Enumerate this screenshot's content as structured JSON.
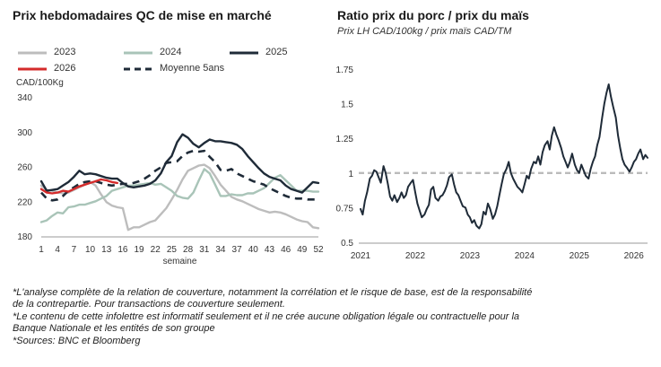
{
  "left": {
    "title": "Prix hebdomadaires QC de mise en marché"
  },
  "right": {
    "title": "Ratio prix du porc / prix du maïs",
    "subtitle": "Prix LH CAD/100kg / prix maïs CAD/TM"
  },
  "footnotes": [
    "*L'analyse complète de la relation de couverture, notamment la corrélation et le risque de base, est de la responsabilité",
    "de la contrepartie. Pour transactions de couverture seulement.",
    "*Le contenu de cette infolettre est informatif seulement et il ne crée aucune obligation légale ou contractuelle pour la",
    "Banque Nationale et les entités de son groupe",
    "*Sources: BNC et Bloomberg"
  ],
  "chart_data": [
    {
      "type": "line",
      "title": "Prix hebdomadaires QC de mise en marché",
      "ylabel": "CAD/100Kg",
      "xlabel": "semaine",
      "ylim": [
        180,
        340
      ],
      "yticks": [
        180,
        220,
        260,
        300,
        340
      ],
      "xlim": [
        1,
        52
      ],
      "xticks": [
        1,
        4,
        7,
        10,
        13,
        16,
        19,
        22,
        25,
        28,
        31,
        34,
        37,
        40,
        43,
        46,
        49,
        52
      ],
      "legend_position": "top",
      "series": [
        {
          "name": "2023",
          "color": "#bdbdbd",
          "dash": false,
          "x": [
            1,
            2,
            3,
            4,
            5,
            6,
            7,
            8,
            9,
            10,
            11,
            12,
            13,
            14,
            15,
            16,
            17,
            18,
            19,
            20,
            21,
            22,
            23,
            24,
            25,
            26,
            27,
            28,
            29,
            30,
            31,
            32,
            33,
            34,
            35,
            36,
            37,
            38,
            39,
            40,
            41,
            42,
            43,
            44,
            45,
            46,
            47,
            48,
            49,
            50,
            51,
            52
          ],
          "values": [
            238,
            233,
            232,
            230,
            229,
            230,
            233,
            236,
            239,
            242,
            238,
            228,
            219,
            215,
            213,
            212,
            187,
            190,
            190,
            193,
            196,
            198,
            205,
            212,
            222,
            233,
            245,
            255,
            258,
            261,
            262,
            258,
            249,
            239,
            232,
            225,
            222,
            220,
            217,
            214,
            211,
            209,
            207,
            208,
            207,
            205,
            202,
            199,
            197,
            196,
            190,
            189
          ]
        },
        {
          "name": "2024",
          "color": "#a9c4b8",
          "dash": false,
          "x": [
            1,
            2,
            3,
            4,
            5,
            6,
            7,
            8,
            9,
            10,
            11,
            12,
            13,
            14,
            15,
            16,
            17,
            18,
            19,
            20,
            21,
            22,
            23,
            24,
            25,
            26,
            27,
            28,
            29,
            30,
            31,
            32,
            33,
            34,
            35,
            36,
            37,
            38,
            39,
            40,
            41,
            42,
            43,
            44,
            45,
            46,
            47,
            48,
            49,
            50,
            51,
            52
          ],
          "values": [
            196,
            198,
            203,
            207,
            206,
            213,
            214,
            216,
            216,
            218,
            220,
            223,
            226,
            232,
            234,
            236,
            238,
            238,
            239,
            240,
            241,
            239,
            240,
            236,
            232,
            226,
            224,
            223,
            230,
            244,
            257,
            252,
            239,
            226,
            226,
            228,
            227,
            227,
            229,
            229,
            232,
            235,
            241,
            247,
            250,
            244,
            238,
            232,
            232,
            232,
            231,
            231
          ]
        },
        {
          "name": "2025",
          "color": "#1f2b38",
          "dash": false,
          "x": [
            1,
            2,
            3,
            4,
            5,
            6,
            7,
            8,
            9,
            10,
            11,
            12,
            13,
            14,
            15,
            16,
            17,
            18,
            19,
            20,
            21,
            22,
            23,
            24,
            25,
            26,
            27,
            28,
            29,
            30,
            31,
            32,
            33,
            34,
            35,
            36,
            37,
            38,
            39,
            40,
            41,
            42,
            43,
            44,
            45,
            46,
            47,
            48,
            49,
            50,
            51,
            52
          ],
          "values": [
            243,
            232,
            233,
            234,
            238,
            242,
            248,
            255,
            251,
            252,
            251,
            249,
            247,
            246,
            246,
            241,
            237,
            236,
            237,
            238,
            240,
            244,
            252,
            265,
            272,
            288,
            297,
            293,
            286,
            282,
            287,
            291,
            289,
            289,
            288,
            287,
            285,
            280,
            272,
            265,
            258,
            252,
            248,
            246,
            244,
            238,
            234,
            232,
            230,
            236,
            242,
            241
          ]
        },
        {
          "name": "2026",
          "color": "#d42b2b",
          "dash": false,
          "x": [
            1,
            2,
            3,
            4,
            5,
            6,
            7,
            8,
            9,
            10,
            11,
            12,
            13,
            14,
            15
          ],
          "values": [
            234,
            230,
            229,
            230,
            232,
            231,
            234,
            237,
            239,
            241,
            243,
            245,
            244,
            242,
            241
          ]
        },
        {
          "name": "Moyenne 5ans",
          "color": "#1f2b38",
          "dash": true,
          "x": [
            1,
            2,
            3,
            4,
            5,
            6,
            7,
            8,
            9,
            10,
            11,
            12,
            13,
            14,
            15,
            16,
            17,
            18,
            19,
            20,
            21,
            22,
            23,
            24,
            25,
            26,
            27,
            28,
            29,
            30,
            31,
            32,
            33,
            34,
            35,
            36,
            37,
            38,
            39,
            40,
            41,
            42,
            43,
            44,
            45,
            46,
            47,
            48,
            49,
            50,
            51,
            52
          ],
          "values": [
            230,
            223,
            221,
            222,
            226,
            232,
            236,
            240,
            242,
            243,
            243,
            241,
            239,
            238,
            239,
            240,
            240,
            241,
            243,
            246,
            250,
            255,
            259,
            264,
            265,
            266,
            272,
            276,
            278,
            277,
            278,
            271,
            265,
            256,
            255,
            257,
            252,
            249,
            246,
            243,
            241,
            239,
            235,
            232,
            229,
            226,
            224,
            223,
            223,
            222,
            222,
            222
          ]
        }
      ]
    },
    {
      "type": "line",
      "title": "Ratio prix du porc / prix du maïs",
      "subtitle": "Prix LH CAD/100kg / prix maïs CAD/TM",
      "ylim": [
        0.5,
        1.75
      ],
      "yticks": [
        0.5,
        0.75,
        1,
        1.25,
        1.5,
        1.75
      ],
      "ytick_labels": [
        "0.5",
        "0.75",
        "1",
        "1.25",
        "1.5",
        "1.75"
      ],
      "xlim": [
        2021.0,
        2026.25
      ],
      "xticks": [
        2021,
        2022,
        2023,
        2024,
        2025,
        2026
      ],
      "xtick_labels": [
        "2021",
        "2022",
        "2023",
        "2024",
        "2025",
        "2026"
      ],
      "reference_line": {
        "y": 1,
        "color": "#bbbbbb",
        "dash": true
      },
      "series": [
        {
          "color": "#1f2b38",
          "x": [
            2021.0,
            2021.04,
            2021.08,
            2021.12,
            2021.17,
            2021.21,
            2021.25,
            2021.29,
            2021.33,
            2021.37,
            2021.42,
            2021.46,
            2021.5,
            2021.54,
            2021.58,
            2021.62,
            2021.67,
            2021.71,
            2021.75,
            2021.79,
            2021.83,
            2021.87,
            2021.92,
            2021.96,
            2022.0,
            2022.04,
            2022.08,
            2022.12,
            2022.17,
            2022.21,
            2022.25,
            2022.29,
            2022.33,
            2022.37,
            2022.42,
            2022.46,
            2022.5,
            2022.54,
            2022.58,
            2022.62,
            2022.67,
            2022.71,
            2022.75,
            2022.79,
            2022.83,
            2022.87,
            2022.92,
            2022.96,
            2023.0,
            2023.04,
            2023.08,
            2023.12,
            2023.17,
            2023.21,
            2023.25,
            2023.29,
            2023.33,
            2023.37,
            2023.42,
            2023.46,
            2023.5,
            2023.54,
            2023.58,
            2023.62,
            2023.67,
            2023.71,
            2023.75,
            2023.79,
            2023.83,
            2023.87,
            2023.92,
            2023.96,
            2024.0,
            2024.04,
            2024.08,
            2024.12,
            2024.17,
            2024.21,
            2024.25,
            2024.29,
            2024.33,
            2024.37,
            2024.42,
            2024.46,
            2024.5,
            2024.54,
            2024.58,
            2024.62,
            2024.67,
            2024.71,
            2024.75,
            2024.79,
            2024.83,
            2024.87,
            2024.92,
            2024.96,
            2025.0,
            2025.04,
            2025.08,
            2025.12,
            2025.17,
            2025.21,
            2025.25,
            2025.29,
            2025.33,
            2025.37,
            2025.42,
            2025.46,
            2025.5,
            2025.54,
            2025.58,
            2025.62,
            2025.67,
            2025.71,
            2025.75,
            2025.79,
            2025.83,
            2025.87,
            2025.92,
            2025.96,
            2026.0,
            2026.04,
            2026.08,
            2026.12,
            2026.17,
            2026.21,
            2026.25
          ],
          "values": [
            0.74,
            0.7,
            0.8,
            0.86,
            0.96,
            0.98,
            1.02,
            1.01,
            0.97,
            0.93,
            1.05,
            1.0,
            0.92,
            0.83,
            0.8,
            0.84,
            0.79,
            0.82,
            0.86,
            0.82,
            0.84,
            0.9,
            0.93,
            0.95,
            0.86,
            0.78,
            0.73,
            0.68,
            0.7,
            0.74,
            0.77,
            0.88,
            0.9,
            0.82,
            0.8,
            0.83,
            0.84,
            0.87,
            0.91,
            0.97,
            0.99,
            0.92,
            0.86,
            0.84,
            0.8,
            0.76,
            0.75,
            0.7,
            0.68,
            0.64,
            0.66,
            0.62,
            0.6,
            0.63,
            0.72,
            0.7,
            0.78,
            0.74,
            0.67,
            0.7,
            0.76,
            0.84,
            0.92,
            0.99,
            1.03,
            1.08,
            1.0,
            0.96,
            0.93,
            0.9,
            0.88,
            0.86,
            0.92,
            0.98,
            0.96,
            1.03,
            1.08,
            1.07,
            1.12,
            1.06,
            1.15,
            1.2,
            1.23,
            1.17,
            1.27,
            1.33,
            1.28,
            1.24,
            1.18,
            1.12,
            1.08,
            1.04,
            1.08,
            1.14,
            1.06,
            1.02,
            1.0,
            1.06,
            1.02,
            0.98,
            0.96,
            1.03,
            1.08,
            1.12,
            1.2,
            1.26,
            1.4,
            1.5,
            1.58,
            1.64,
            1.55,
            1.48,
            1.4,
            1.27,
            1.18,
            1.1,
            1.06,
            1.04,
            1.01,
            1.04,
            1.08,
            1.1,
            1.14,
            1.17,
            1.1,
            1.13,
            1.11
          ]
        }
      ]
    }
  ]
}
